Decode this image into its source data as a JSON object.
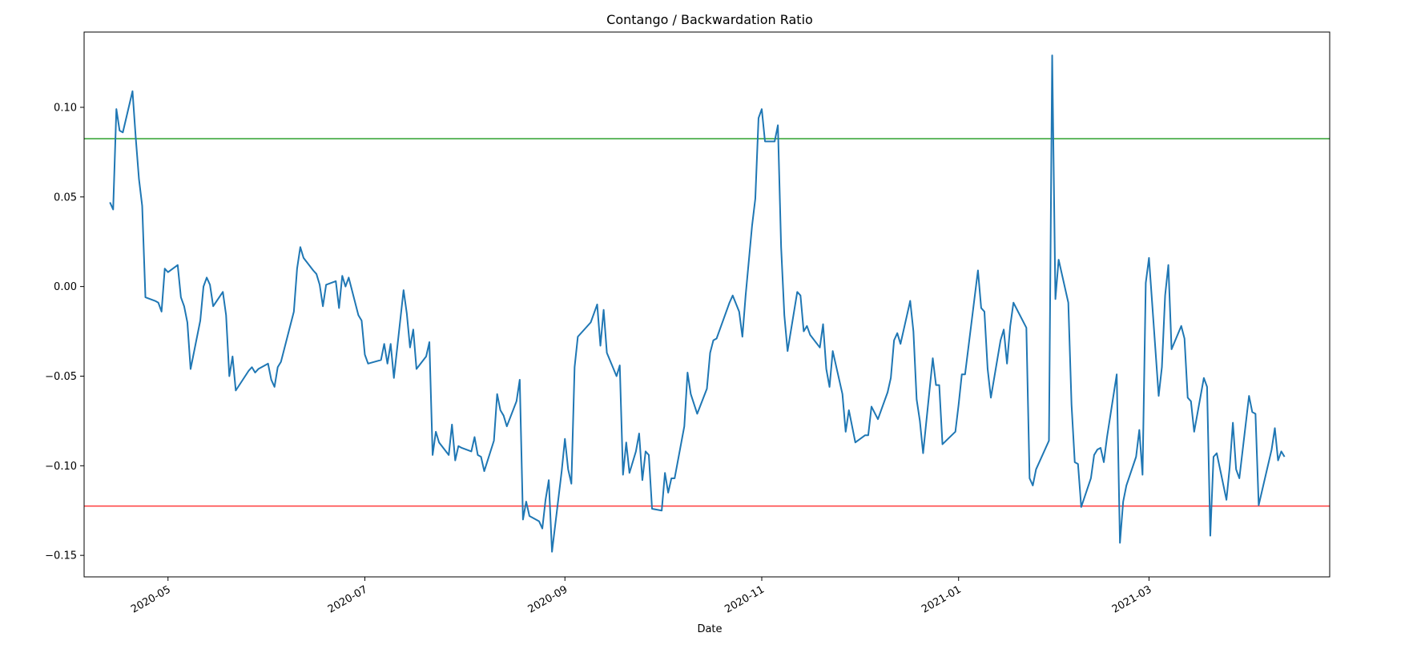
{
  "chart_data": {
    "type": "line",
    "title": "Contango / Backwardation Ratio",
    "xlabel": "Date",
    "ylabel": "",
    "xlim": [
      "2020-04-05",
      "2021-04-26"
    ],
    "ylim": [
      -0.162,
      0.142
    ],
    "x_ticks": [
      "2020-05",
      "2020-07",
      "2020-09",
      "2020-11",
      "2021-01",
      "2021-03"
    ],
    "y_ticks": [
      -0.15,
      -0.1,
      -0.05,
      0.0,
      0.05,
      0.1
    ],
    "y_tick_labels": [
      "−0.15",
      "−0.10",
      "−0.05",
      "0.00",
      "0.05",
      "0.10"
    ],
    "grid": false,
    "legend": "none",
    "reference_lines": [
      {
        "y": 0.0825,
        "color": "#2ca02c"
      },
      {
        "y": -0.1225,
        "color": "#ff3b3b"
      }
    ],
    "series": [
      {
        "color": "#1f77b4",
        "points": [
          [
            "2020-04-13",
            0.047
          ],
          [
            "2020-04-14",
            0.043
          ],
          [
            "2020-04-15",
            0.099
          ],
          [
            "2020-04-16",
            0.087
          ],
          [
            "2020-04-17",
            0.086
          ],
          [
            "2020-04-20",
            0.109
          ],
          [
            "2020-04-21",
            0.083
          ],
          [
            "2020-04-22",
            0.06
          ],
          [
            "2020-04-23",
            0.045
          ],
          [
            "2020-04-24",
            -0.006
          ],
          [
            "2020-04-27",
            -0.008
          ],
          [
            "2020-04-28",
            -0.009
          ],
          [
            "2020-04-29",
            -0.014
          ],
          [
            "2020-04-30",
            0.01
          ],
          [
            "2020-05-01",
            0.008
          ],
          [
            "2020-05-04",
            0.012
          ],
          [
            "2020-05-05",
            -0.006
          ],
          [
            "2020-05-06",
            -0.011
          ],
          [
            "2020-05-07",
            -0.02
          ],
          [
            "2020-05-08",
            -0.046
          ],
          [
            "2020-05-11",
            -0.019
          ],
          [
            "2020-05-12",
            0.0
          ],
          [
            "2020-05-13",
            0.005
          ],
          [
            "2020-05-14",
            0.001
          ],
          [
            "2020-05-15",
            -0.011
          ],
          [
            "2020-05-18",
            -0.003
          ],
          [
            "2020-05-19",
            -0.016
          ],
          [
            "2020-05-20",
            -0.05
          ],
          [
            "2020-05-21",
            -0.039
          ],
          [
            "2020-05-22",
            -0.058
          ],
          [
            "2020-05-26",
            -0.047
          ],
          [
            "2020-05-27",
            -0.045
          ],
          [
            "2020-05-28",
            -0.048
          ],
          [
            "2020-05-29",
            -0.046
          ],
          [
            "2020-06-01",
            -0.043
          ],
          [
            "2020-06-02",
            -0.052
          ],
          [
            "2020-06-03",
            -0.056
          ],
          [
            "2020-06-04",
            -0.045
          ],
          [
            "2020-06-05",
            -0.042
          ],
          [
            "2020-06-08",
            -0.021
          ],
          [
            "2020-06-09",
            -0.014
          ],
          [
            "2020-06-10",
            0.01
          ],
          [
            "2020-06-11",
            0.022
          ],
          [
            "2020-06-12",
            0.016
          ],
          [
            "2020-06-15",
            0.009
          ],
          [
            "2020-06-16",
            0.007
          ],
          [
            "2020-06-17",
            0.001
          ],
          [
            "2020-06-18",
            -0.011
          ],
          [
            "2020-06-19",
            0.001
          ],
          [
            "2020-06-22",
            0.003
          ],
          [
            "2020-06-23",
            -0.012
          ],
          [
            "2020-06-24",
            0.006
          ],
          [
            "2020-06-25",
            0.0
          ],
          [
            "2020-06-26",
            0.005
          ],
          [
            "2020-06-29",
            -0.016
          ],
          [
            "2020-06-30",
            -0.019
          ],
          [
            "2020-07-01",
            -0.038
          ],
          [
            "2020-07-02",
            -0.043
          ],
          [
            "2020-07-06",
            -0.041
          ],
          [
            "2020-07-07",
            -0.032
          ],
          [
            "2020-07-08",
            -0.043
          ],
          [
            "2020-07-09",
            -0.032
          ],
          [
            "2020-07-10",
            -0.051
          ],
          [
            "2020-07-13",
            -0.002
          ],
          [
            "2020-07-14",
            -0.015
          ],
          [
            "2020-07-15",
            -0.034
          ],
          [
            "2020-07-16",
            -0.024
          ],
          [
            "2020-07-17",
            -0.046
          ],
          [
            "2020-07-20",
            -0.039
          ],
          [
            "2020-07-21",
            -0.031
          ],
          [
            "2020-07-22",
            -0.094
          ],
          [
            "2020-07-23",
            -0.081
          ],
          [
            "2020-07-24",
            -0.087
          ],
          [
            "2020-07-27",
            -0.094
          ],
          [
            "2020-07-28",
            -0.077
          ],
          [
            "2020-07-29",
            -0.097
          ],
          [
            "2020-07-30",
            -0.089
          ],
          [
            "2020-07-31",
            -0.09
          ],
          [
            "2020-08-03",
            -0.092
          ],
          [
            "2020-08-04",
            -0.084
          ],
          [
            "2020-08-05",
            -0.094
          ],
          [
            "2020-08-06",
            -0.095
          ],
          [
            "2020-08-07",
            -0.103
          ],
          [
            "2020-08-10",
            -0.086
          ],
          [
            "2020-08-11",
            -0.06
          ],
          [
            "2020-08-12",
            -0.069
          ],
          [
            "2020-08-13",
            -0.072
          ],
          [
            "2020-08-14",
            -0.078
          ],
          [
            "2020-08-17",
            -0.064
          ],
          [
            "2020-08-18",
            -0.052
          ],
          [
            "2020-08-19",
            -0.13
          ],
          [
            "2020-08-20",
            -0.12
          ],
          [
            "2020-08-21",
            -0.128
          ],
          [
            "2020-08-24",
            -0.131
          ],
          [
            "2020-08-25",
            -0.135
          ],
          [
            "2020-08-26",
            -0.119
          ],
          [
            "2020-08-27",
            -0.108
          ],
          [
            "2020-08-28",
            -0.148
          ],
          [
            "2020-08-31",
            -0.103
          ],
          [
            "2020-09-01",
            -0.085
          ],
          [
            "2020-09-02",
            -0.102
          ],
          [
            "2020-09-03",
            -0.11
          ],
          [
            "2020-09-04",
            -0.045
          ],
          [
            "2020-09-05",
            -0.028
          ],
          [
            "2020-09-09",
            -0.02
          ],
          [
            "2020-09-10",
            -0.015
          ],
          [
            "2020-09-11",
            -0.01
          ],
          [
            "2020-09-12",
            -0.033
          ],
          [
            "2020-09-13",
            -0.013
          ],
          [
            "2020-09-14",
            -0.037
          ],
          [
            "2020-09-17",
            -0.05
          ],
          [
            "2020-09-18",
            -0.044
          ],
          [
            "2020-09-19",
            -0.105
          ],
          [
            "2020-09-20",
            -0.087
          ],
          [
            "2020-09-21",
            -0.104
          ],
          [
            "2020-09-23",
            -0.092
          ],
          [
            "2020-09-24",
            -0.082
          ],
          [
            "2020-09-25",
            -0.108
          ],
          [
            "2020-09-26",
            -0.092
          ],
          [
            "2020-09-27",
            -0.094
          ],
          [
            "2020-09-28",
            -0.124
          ],
          [
            "2020-10-01",
            -0.125
          ],
          [
            "2020-10-02",
            -0.104
          ],
          [
            "2020-10-03",
            -0.115
          ],
          [
            "2020-10-04",
            -0.107
          ],
          [
            "2020-10-05",
            -0.107
          ],
          [
            "2020-10-08",
            -0.078
          ],
          [
            "2020-10-09",
            -0.048
          ],
          [
            "2020-10-10",
            -0.06
          ],
          [
            "2020-10-12",
            -0.071
          ],
          [
            "2020-10-15",
            -0.057
          ],
          [
            "2020-10-16",
            -0.037
          ],
          [
            "2020-10-17",
            -0.03
          ],
          [
            "2020-10-18",
            -0.029
          ],
          [
            "2020-10-19",
            -0.024
          ],
          [
            "2020-10-22",
            -0.009
          ],
          [
            "2020-10-23",
            -0.005
          ],
          [
            "2020-10-25",
            -0.014
          ],
          [
            "2020-10-26",
            -0.028
          ],
          [
            "2020-10-27",
            -0.005
          ],
          [
            "2020-10-29",
            0.034
          ],
          [
            "2020-10-30",
            0.049
          ],
          [
            "2020-10-31",
            0.094
          ],
          [
            "2020-11-01",
            0.099
          ],
          [
            "2020-11-02",
            0.081
          ],
          [
            "2020-11-05",
            0.081
          ],
          [
            "2020-11-06",
            0.09
          ],
          [
            "2020-11-07",
            0.022
          ],
          [
            "2020-11-08",
            -0.016
          ],
          [
            "2020-11-09",
            -0.036
          ],
          [
            "2020-11-12",
            -0.003
          ],
          [
            "2020-11-13",
            -0.005
          ],
          [
            "2020-11-14",
            -0.025
          ],
          [
            "2020-11-15",
            -0.022
          ],
          [
            "2020-11-16",
            -0.027
          ],
          [
            "2020-11-19",
            -0.034
          ],
          [
            "2020-11-20",
            -0.021
          ],
          [
            "2020-11-21",
            -0.046
          ],
          [
            "2020-11-22",
            -0.056
          ],
          [
            "2020-11-23",
            -0.036
          ],
          [
            "2020-11-26",
            -0.06
          ],
          [
            "2020-11-27",
            -0.081
          ],
          [
            "2020-11-28",
            -0.069
          ],
          [
            "2020-11-30",
            -0.087
          ],
          [
            "2020-12-03",
            -0.083
          ],
          [
            "2020-12-04",
            -0.083
          ],
          [
            "2020-12-05",
            -0.067
          ],
          [
            "2020-12-07",
            -0.074
          ],
          [
            "2020-12-10",
            -0.059
          ],
          [
            "2020-12-11",
            -0.051
          ],
          [
            "2020-12-12",
            -0.03
          ],
          [
            "2020-12-13",
            -0.026
          ],
          [
            "2020-12-14",
            -0.032
          ],
          [
            "2020-12-17",
            -0.008
          ],
          [
            "2020-12-18",
            -0.025
          ],
          [
            "2020-12-19",
            -0.063
          ],
          [
            "2020-12-20",
            -0.075
          ],
          [
            "2020-12-21",
            -0.093
          ],
          [
            "2020-12-24",
            -0.04
          ],
          [
            "2020-12-25",
            -0.055
          ],
          [
            "2020-12-26",
            -0.055
          ],
          [
            "2020-12-27",
            -0.088
          ],
          [
            "2020-12-31",
            -0.081
          ],
          [
            "2021-01-01",
            -0.066
          ],
          [
            "2021-01-02",
            -0.049
          ],
          [
            "2021-01-03",
            -0.049
          ],
          [
            "2021-01-07",
            0.009
          ],
          [
            "2021-01-08",
            -0.012
          ],
          [
            "2021-01-09",
            -0.014
          ],
          [
            "2021-01-10",
            -0.046
          ],
          [
            "2021-01-11",
            -0.062
          ],
          [
            "2021-01-14",
            -0.03
          ],
          [
            "2021-01-15",
            -0.024
          ],
          [
            "2021-01-16",
            -0.043
          ],
          [
            "2021-01-17",
            -0.022
          ],
          [
            "2021-01-18",
            -0.009
          ],
          [
            "2021-01-22",
            -0.023
          ],
          [
            "2021-01-23",
            -0.107
          ],
          [
            "2021-01-24",
            -0.111
          ],
          [
            "2021-01-25",
            -0.102
          ],
          [
            "2021-01-29",
            -0.086
          ],
          [
            "2021-01-30",
            0.129
          ],
          [
            "2021-01-31",
            -0.007
          ],
          [
            "2021-02-01",
            0.015
          ],
          [
            "2021-02-04",
            -0.009
          ],
          [
            "2021-02-05",
            -0.066
          ],
          [
            "2021-02-06",
            -0.098
          ],
          [
            "2021-02-07",
            -0.099
          ],
          [
            "2021-02-08",
            -0.123
          ],
          [
            "2021-02-11",
            -0.107
          ],
          [
            "2021-02-12",
            -0.094
          ],
          [
            "2021-02-13",
            -0.091
          ],
          [
            "2021-02-14",
            -0.09
          ],
          [
            "2021-02-15",
            -0.098
          ],
          [
            "2021-02-16",
            -0.084
          ],
          [
            "2021-02-19",
            -0.049
          ],
          [
            "2021-02-20",
            -0.143
          ],
          [
            "2021-02-21",
            -0.12
          ],
          [
            "2021-02-22",
            -0.111
          ],
          [
            "2021-02-25",
            -0.095
          ],
          [
            "2021-02-26",
            -0.08
          ],
          [
            "2021-02-27",
            -0.105
          ],
          [
            "2021-02-28",
            0.002
          ],
          [
            "2021-03-01",
            0.016
          ],
          [
            "2021-03-04",
            -0.061
          ],
          [
            "2021-03-05",
            -0.045
          ],
          [
            "2021-03-06",
            -0.005
          ],
          [
            "2021-03-07",
            0.012
          ],
          [
            "2021-03-08",
            -0.035
          ],
          [
            "2021-03-11",
            -0.022
          ],
          [
            "2021-03-12",
            -0.029
          ],
          [
            "2021-03-13",
            -0.062
          ],
          [
            "2021-03-14",
            -0.064
          ],
          [
            "2021-03-15",
            -0.081
          ],
          [
            "2021-03-18",
            -0.051
          ],
          [
            "2021-03-19",
            -0.056
          ],
          [
            "2021-03-20",
            -0.139
          ],
          [
            "2021-03-21",
            -0.095
          ],
          [
            "2021-03-22",
            -0.093
          ],
          [
            "2021-03-25",
            -0.119
          ],
          [
            "2021-03-26",
            -0.101
          ],
          [
            "2021-03-27",
            -0.076
          ],
          [
            "2021-03-28",
            -0.102
          ],
          [
            "2021-03-29",
            -0.107
          ],
          [
            "2021-04-01",
            -0.061
          ],
          [
            "2021-04-02",
            -0.07
          ],
          [
            "2021-04-03",
            -0.071
          ],
          [
            "2021-04-04",
            -0.122
          ],
          [
            "2021-04-08",
            -0.091
          ],
          [
            "2021-04-09",
            -0.079
          ],
          [
            "2021-04-10",
            -0.097
          ],
          [
            "2021-04-11",
            -0.092
          ],
          [
            "2021-04-12",
            -0.095
          ]
        ]
      }
    ]
  }
}
